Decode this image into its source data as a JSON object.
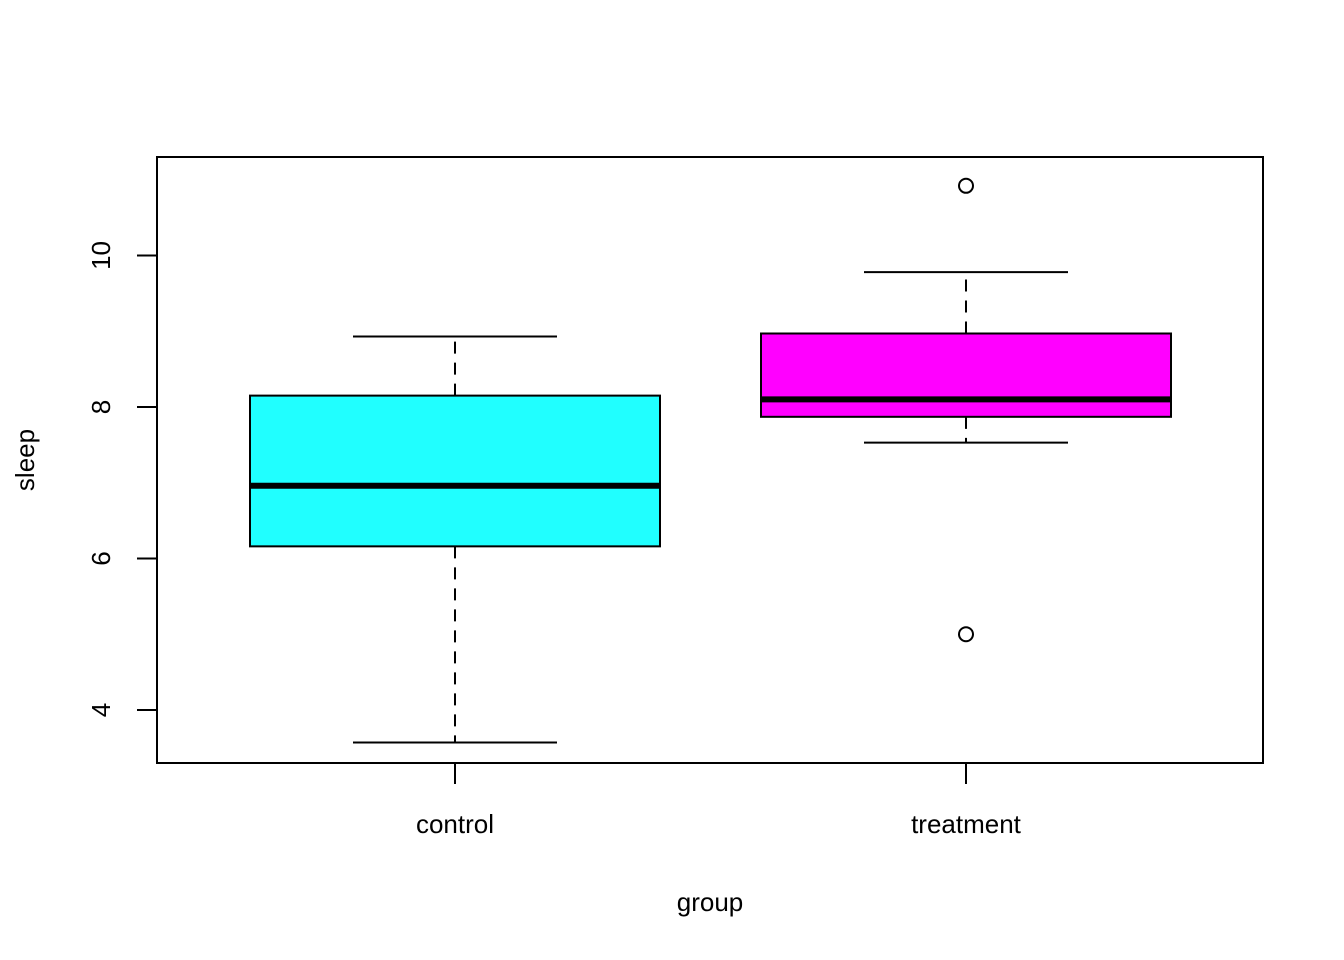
{
  "chart_data": {
    "type": "boxplot",
    "xlabel": "group",
    "ylabel": "sleep",
    "ylim": [
      3.3,
      11.3
    ],
    "yticks": [
      4,
      6,
      8,
      10
    ],
    "grid": false,
    "categories": [
      "control",
      "treatment"
    ],
    "boxes": [
      {
        "group": "control",
        "color": "#20FFFF",
        "whisker_low": 3.57,
        "q1": 6.16,
        "median": 6.96,
        "q3": 8.15,
        "whisker_high": 8.93,
        "outliers": []
      },
      {
        "group": "treatment",
        "color": "#FF00FF",
        "whisker_low": 7.53,
        "q1": 7.87,
        "median": 8.1,
        "q3": 8.97,
        "whisker_high": 9.78,
        "outliers": [
          10.92,
          5.0
        ]
      }
    ]
  }
}
